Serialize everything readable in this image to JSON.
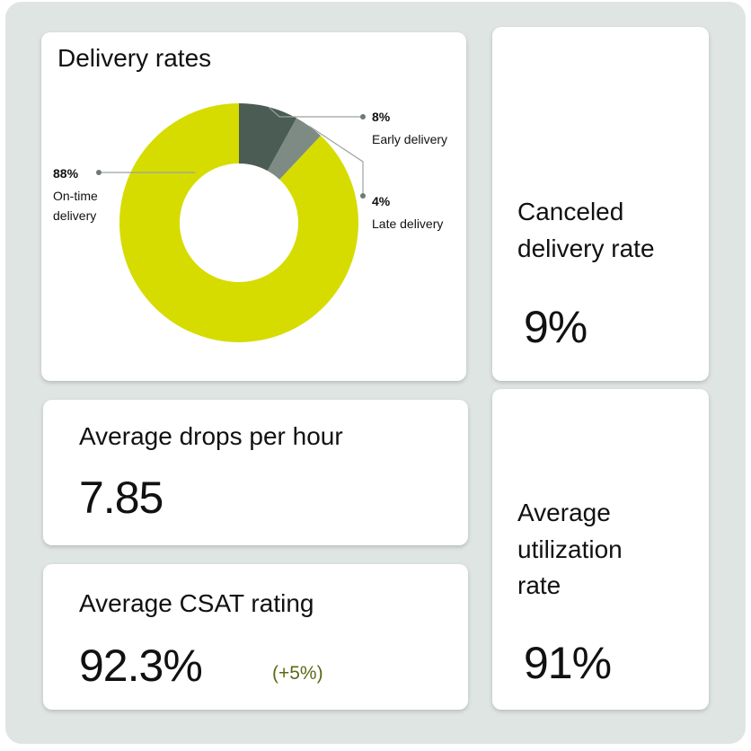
{
  "colors": {
    "background": "#dfe5e2",
    "card": "#ffffff",
    "on_time": "#d6dc00",
    "early": "#4a5c54",
    "late": "#7d8b84",
    "positive_change": "#5a6a14",
    "leader_line": "#9aa3a0"
  },
  "delivery_card": {
    "title": "Delivery rates"
  },
  "chart_data": {
    "type": "pie",
    "title": "Delivery rates",
    "donut": true,
    "slices": [
      {
        "label": "Early delivery",
        "display_value": "8%",
        "value": 8
      },
      {
        "label": "Late delivery",
        "display_value": "4%",
        "value": 4
      },
      {
        "label": "On-time delivery",
        "display_value": "88%",
        "value": 88
      }
    ]
  },
  "canceled_card": {
    "title": "Canceled delivery rate",
    "value": "9%"
  },
  "drops_card": {
    "title": "Average drops per hour",
    "value": "7.85"
  },
  "csat_card": {
    "title": "Average CSAT rating",
    "value": "92.3%",
    "change": "(+5%)"
  },
  "utilization_card": {
    "title": "Average utilization rate",
    "value": "91%"
  }
}
